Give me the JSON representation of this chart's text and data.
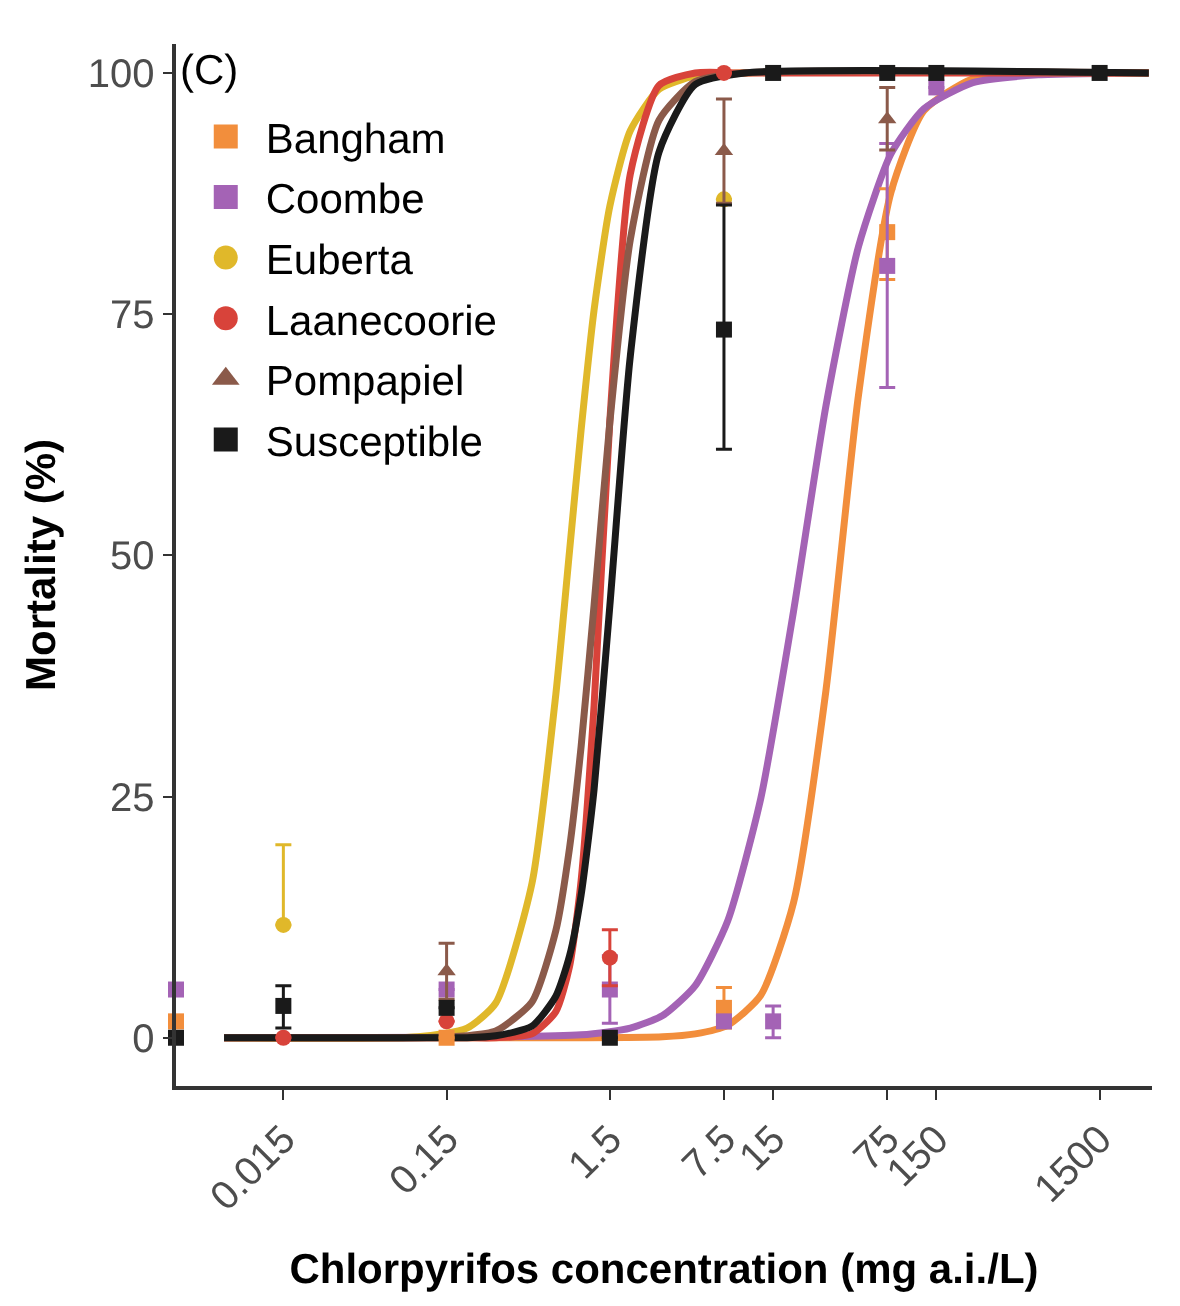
{
  "chart_data": {
    "type": "scatter",
    "xlabel": "Chlorpyrifos concentration (mg a.i./L)",
    "ylabel": "Mortality (%)",
    "annotations": [
      "(C)"
    ],
    "log": "x",
    "grid": false,
    "legend": "top left",
    "xlim": [
      0.0033,
      3140
    ],
    "xticks": [
      0.015,
      0.15,
      1.5,
      7.5,
      15,
      75,
      150,
      1500
    ],
    "ylim": [
      -5,
      103
    ],
    "yticks": [
      0,
      25,
      50,
      75,
      100
    ],
    "series": [
      {
        "type": "line",
        "color": "#f28e3c",
        "x": [
          0.0065,
          1,
          3.16,
          5,
          7.9,
          12.6,
          20,
          31.6,
          50,
          79,
          126,
          251,
          631,
          3000
        ],
        "values": [
          0,
          0,
          0.1,
          0.4,
          1.3,
          4.4,
          14,
          36,
          66.6,
          87.6,
          96.1,
          99.4,
          100,
          100
        ]
      },
      {
        "type": "line",
        "color": "#a463b5",
        "x": [
          0.0065,
          1,
          2,
          3.16,
          5,
          7.9,
          12.6,
          20,
          31.6,
          50,
          79,
          126,
          251,
          631,
          3000
        ],
        "values": [
          0,
          0.3,
          1.0,
          2.3,
          5.4,
          12.1,
          24.8,
          44.2,
          65.5,
          82,
          91.6,
          96.3,
          99,
          99.8,
          100
        ]
      },
      {
        "type": "line",
        "color": "#e0b82a",
        "x": [
          0.0065,
          0.1,
          0.2,
          0.3,
          0.5,
          0.7,
          0.85,
          1,
          1.2,
          1.5,
          2,
          3,
          5,
          10,
          3000
        ],
        "values": [
          0,
          0.1,
          1.0,
          3.6,
          16,
          35.6,
          50.5,
          63,
          75.4,
          86.2,
          94,
          98.3,
          99.7,
          100,
          100
        ]
      },
      {
        "type": "line",
        "color": "#d8433a",
        "x": [
          0.0065,
          0.1,
          0.2,
          0.3,
          0.5,
          0.7,
          0.85,
          1,
          1.2,
          1.5,
          2,
          3,
          5,
          10,
          3000
        ],
        "values": [
          0,
          0,
          0,
          0,
          0.4,
          2.7,
          7.4,
          16.3,
          34.4,
          64,
          89.5,
          98.7,
          100,
          100,
          100
        ]
      },
      {
        "type": "line",
        "color": "#8b5a4a",
        "x": [
          0.0065,
          0.1,
          0.2,
          0.3,
          0.5,
          0.7,
          0.85,
          1,
          1.2,
          1.5,
          2,
          3,
          5,
          10,
          3000
        ],
        "values": [
          0,
          0,
          0.2,
          0.7,
          3.7,
          11.1,
          19.7,
          30.2,
          44.8,
          63.8,
          82.7,
          95.1,
          99.1,
          100,
          100
        ]
      },
      {
        "type": "line",
        "color": "#1a1a1a",
        "x": [
          0.0065,
          0.1,
          0.2,
          0.3,
          0.5,
          0.7,
          0.85,
          1,
          1.2,
          1.5,
          2,
          3,
          5,
          10,
          3000
        ],
        "values": [
          0,
          0,
          0,
          0.2,
          1.2,
          4.3,
          8.5,
          14.8,
          25.7,
          44.8,
          70.6,
          91.8,
          98.8,
          100,
          100
        ]
      },
      {
        "name": "Bangham",
        "color": "#f28e3c",
        "marker": "square",
        "x": [
          0.0033,
          0.15,
          7.5,
          75
        ],
        "values": [
          1.7,
          0,
          3.1,
          83.5
        ],
        "errors": [
          null,
          null,
          [
            1,
            5.2
          ],
          [
            78.6,
            88
          ]
        ]
      },
      {
        "name": "Coombe",
        "color": "#a463b5",
        "marker": "square",
        "x": [
          0.0033,
          0.15,
          1.5,
          7.5,
          15,
          75,
          150
        ],
        "values": [
          5,
          5,
          5,
          1.7,
          1.7,
          80,
          98.5
        ],
        "errors": [
          null,
          null,
          [
            1.5,
            8.5
          ],
          null,
          [
            0,
            3.3
          ],
          [
            67.4,
            92.7
          ],
          null
        ]
      },
      {
        "name": "Euberta",
        "color": "#e0b82a",
        "marker": "circle",
        "x": [
          0.015,
          7.5
        ],
        "values": [
          11.7,
          86.9
        ],
        "errors": [
          [
            11.7,
            20
          ],
          null
        ]
      },
      {
        "name": "Laanecoorie",
        "color": "#d8433a",
        "marker": "circle",
        "x": [
          0.015,
          0.15,
          1.5,
          7.5
        ],
        "values": [
          0,
          1.7,
          8.3,
          100
        ],
        "errors": [
          null,
          null,
          [
            5.4,
            11.2
          ],
          null
        ]
      },
      {
        "name": "Pompapiel",
        "color": "#8b5a4a",
        "marker": "triangle",
        "x": [
          0.15,
          7.5,
          75
        ],
        "values": [
          6.9,
          91.9,
          95.2
        ],
        "errors": [
          [
            4,
            9.8
          ],
          [
            86.5,
            97.3
          ],
          [
            92,
            98.5
          ]
        ]
      },
      {
        "name": "Susceptible",
        "color": "#1a1a1a",
        "marker": "square",
        "x": [
          0.0033,
          0.015,
          0.15,
          1.5,
          7.5,
          15,
          75,
          150,
          1500
        ],
        "values": [
          0,
          3.3,
          3.1,
          0,
          73.4,
          100,
          100,
          100,
          100
        ],
        "errors": [
          null,
          [
            1,
            5.4
          ],
          null,
          null,
          [
            61,
            86.3
          ],
          null,
          null,
          null,
          null
        ]
      }
    ]
  }
}
